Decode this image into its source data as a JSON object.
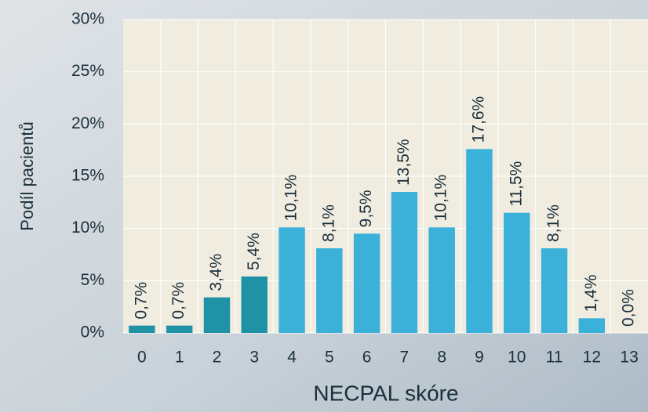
{
  "chart_data": {
    "type": "bar",
    "x_label": "NECPAL skóre",
    "y_label": "Podíl pacientů",
    "categories": [
      "0",
      "1",
      "2",
      "3",
      "4",
      "5",
      "6",
      "7",
      "8",
      "9",
      "10",
      "11",
      "12",
      "13"
    ],
    "values": [
      0.7,
      0.7,
      3.4,
      5.4,
      10.1,
      8.1,
      9.5,
      13.5,
      10.1,
      17.6,
      11.5,
      8.1,
      1.4,
      0.0
    ],
    "value_labels": [
      "0,7%",
      "0,7%",
      "3,4%",
      "5,4%",
      "10,1%",
      "8,1%",
      "9,5%",
      "13,5%",
      "10,1%",
      "17,6%",
      "11,5%",
      "8,1%",
      "1,4%",
      "0,0%"
    ],
    "colors": [
      "#1f93a5",
      "#1f93a5",
      "#1f93a5",
      "#1f93a5",
      "#3bb1d9",
      "#3bb1d9",
      "#3bb1d9",
      "#3bb1d9",
      "#3bb1d9",
      "#3bb1d9",
      "#3bb1d9",
      "#3bb1d9",
      "#3bb1d9",
      "#3bb1d9"
    ],
    "ylim": [
      0,
      30
    ],
    "yticks": [
      {
        "value": 0,
        "label": "0%"
      },
      {
        "value": 5,
        "label": "5%"
      },
      {
        "value": 10,
        "label": "10%"
      },
      {
        "value": 15,
        "label": "15%"
      },
      {
        "value": 20,
        "label": "20%"
      },
      {
        "value": 25,
        "label": "25%"
      },
      {
        "value": 30,
        "label": "30%"
      }
    ],
    "grid": true
  }
}
